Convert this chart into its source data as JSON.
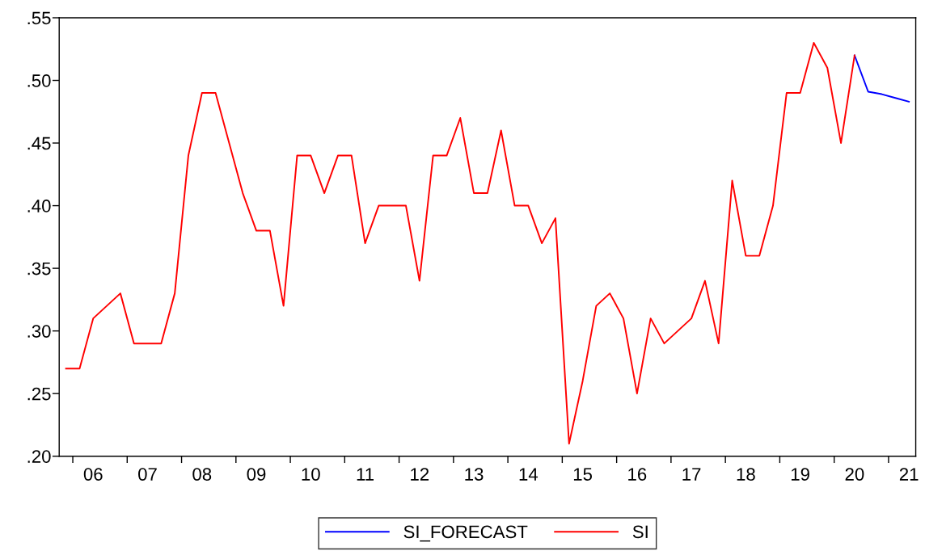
{
  "chart_data": {
    "type": "line",
    "categories": [
      null,
      null,
      "06",
      null,
      null,
      null,
      "07",
      null,
      null,
      null,
      "08",
      null,
      null,
      null,
      "09",
      null,
      null,
      null,
      "10",
      null,
      null,
      null,
      "11",
      null,
      null,
      null,
      "12",
      null,
      null,
      null,
      "13",
      null,
      null,
      null,
      "14",
      null,
      null,
      null,
      "15",
      null,
      null,
      null,
      "16",
      null,
      null,
      null,
      "17",
      null,
      null,
      null,
      "18",
      null,
      null,
      null,
      "19",
      null,
      null,
      null,
      "20",
      null,
      null,
      null,
      "21"
    ],
    "series": [
      {
        "name": "SI_FORECAST",
        "color": "#0000ff",
        "values": [
          null,
          null,
          null,
          null,
          null,
          null,
          null,
          null,
          null,
          null,
          null,
          null,
          null,
          null,
          null,
          null,
          null,
          null,
          null,
          null,
          null,
          null,
          null,
          null,
          null,
          null,
          null,
          null,
          null,
          null,
          null,
          null,
          null,
          null,
          null,
          null,
          null,
          null,
          null,
          null,
          null,
          null,
          null,
          null,
          null,
          null,
          null,
          null,
          null,
          null,
          null,
          null,
          null,
          null,
          null,
          null,
          null,
          null,
          0.52,
          0.491,
          0.489,
          0.486,
          0.483
        ]
      },
      {
        "name": "SI",
        "color": "#ff0000",
        "values": [
          0.27,
          0.27,
          0.31,
          0.32,
          0.33,
          0.29,
          0.29,
          0.29,
          0.33,
          0.44,
          0.49,
          0.49,
          0.45,
          0.41,
          0.38,
          0.38,
          0.32,
          0.44,
          0.44,
          0.41,
          0.44,
          0.44,
          0.37,
          0.4,
          0.4,
          0.4,
          0.34,
          0.44,
          0.44,
          0.47,
          0.41,
          0.41,
          0.46,
          0.4,
          0.4,
          0.37,
          0.39,
          0.21,
          0.26,
          0.32,
          0.33,
          0.31,
          0.25,
          0.31,
          0.29,
          0.3,
          0.31,
          0.34,
          0.29,
          0.42,
          0.36,
          0.36,
          0.4,
          0.49,
          0.49,
          0.53,
          0.51,
          0.45,
          0.52,
          null,
          null,
          null,
          null
        ]
      }
    ],
    "ylim": [
      0.2,
      0.55
    ],
    "yticks": [
      {
        "value": 0.2,
        "label": ".20"
      },
      {
        "value": 0.25,
        "label": ".25"
      },
      {
        "value": 0.3,
        "label": ".30"
      },
      {
        "value": 0.35,
        "label": ".35"
      },
      {
        "value": 0.4,
        "label": ".40"
      },
      {
        "value": 0.45,
        "label": ".45"
      },
      {
        "value": 0.5,
        "label": ".50"
      },
      {
        "value": 0.55,
        "label": ".55"
      }
    ],
    "grid": false,
    "legend": "bottom",
    "marker": "none",
    "line_style": "solid"
  }
}
